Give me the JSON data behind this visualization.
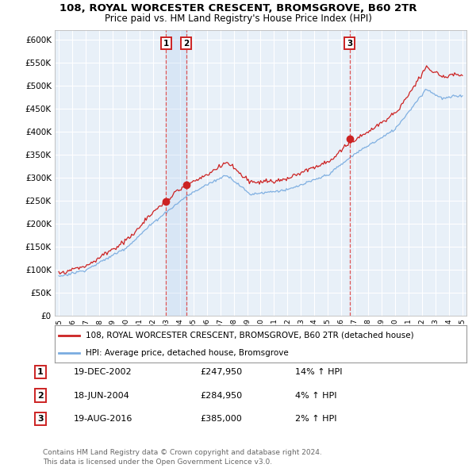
{
  "title1": "108, ROYAL WORCESTER CRESCENT, BROMSGROVE, B60 2TR",
  "title2": "Price paid vs. HM Land Registry's House Price Index (HPI)",
  "ylabel_vals": [
    0,
    50000,
    100000,
    150000,
    200000,
    250000,
    300000,
    350000,
    400000,
    450000,
    500000,
    550000,
    600000
  ],
  "ylabel_labels": [
    "£0",
    "£50K",
    "£100K",
    "£150K",
    "£200K",
    "£250K",
    "£300K",
    "£350K",
    "£400K",
    "£450K",
    "£500K",
    "£550K",
    "£600K"
  ],
  "xlim_start": 1994.7,
  "xlim_end": 2025.3,
  "ylim": [
    0,
    620000
  ],
  "transaction_dates": [
    2002.96,
    2004.46,
    2016.63
  ],
  "transaction_prices": [
    247950,
    284950,
    385000
  ],
  "transaction_labels": [
    "1",
    "2",
    "3"
  ],
  "vline_color": "#dd4444",
  "hpi_color": "#7aace0",
  "property_color": "#cc2222",
  "legend_label_property": "108, ROYAL WORCESTER CRESCENT, BROMSGROVE, B60 2TR (detached house)",
  "legend_label_hpi": "HPI: Average price, detached house, Bromsgrove",
  "table_rows": [
    [
      "1",
      "19-DEC-2002",
      "£247,950",
      "14% ↑ HPI"
    ],
    [
      "2",
      "18-JUN-2004",
      "£284,950",
      "4% ↑ HPI"
    ],
    [
      "3",
      "19-AUG-2016",
      "£385,000",
      "2% ↑ HPI"
    ]
  ],
  "footer_text": "Contains HM Land Registry data © Crown copyright and database right 2024.\nThis data is licensed under the Open Government Licence v3.0.",
  "background_color": "#e8f0f8",
  "x_ticks": [
    1995,
    1996,
    1997,
    1998,
    1999,
    2000,
    2001,
    2002,
    2003,
    2004,
    2005,
    2006,
    2007,
    2008,
    2009,
    2010,
    2011,
    2012,
    2013,
    2014,
    2015,
    2016,
    2017,
    2018,
    2019,
    2020,
    2021,
    2022,
    2023,
    2024,
    2025
  ]
}
